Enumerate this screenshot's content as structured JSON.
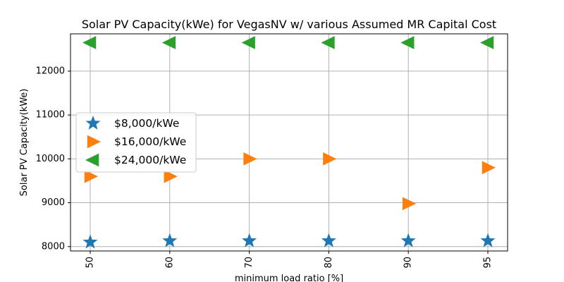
{
  "chart_data": {
    "type": "scatter",
    "title": "Solar PV Capacity(kWe) for VegasNV w/ various Assumed MR Capital Cost",
    "xlabel": "minimum load ratio [%]",
    "ylabel": "Solar PV Capacity(kWe)",
    "categories": [
      "50",
      "60",
      "70",
      "80",
      "90",
      "95"
    ],
    "ylim": [
      7900,
      12850
    ],
    "yticks": [
      "8000",
      "9000",
      "10000",
      "11000",
      "12000"
    ],
    "grid": true,
    "legend_position": "center-left",
    "series": [
      {
        "name": "$8,000/kWe",
        "marker": "star",
        "color": "#1f77b4",
        "values": [
          8100,
          8130,
          8130,
          8130,
          8130,
          8130
        ]
      },
      {
        "name": "$16,000/kWe",
        "marker": "triangle-right",
        "color": "#ff7f0e",
        "values": [
          9600,
          9600,
          10000,
          10000,
          8980,
          9800
        ]
      },
      {
        "name": "$24,000/kWe",
        "marker": "triangle-left",
        "color": "#2ca02c",
        "values": [
          12650,
          12650,
          12650,
          12650,
          12650,
          12650
        ]
      }
    ]
  }
}
